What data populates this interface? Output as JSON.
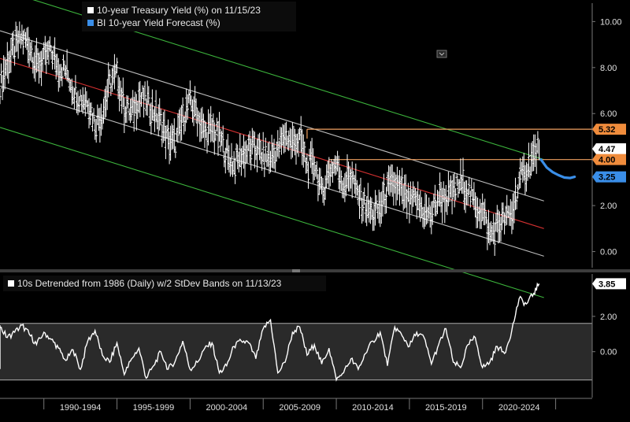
{
  "chart_data": [
    {
      "type": "line",
      "legend": [
        {
          "name": "10-year Treasury Yield (%) on 11/15/23",
          "color": "#ffffff"
        },
        {
          "name": "BI 10-year Yield Forecast (%)",
          "color": "#3a8ee8"
        }
      ],
      "legend_placement": "top-left",
      "yaxis_side": "right",
      "ylim": [
        -0.7,
        10.8
      ],
      "yticks": [
        0,
        2,
        4,
        6,
        8,
        10
      ],
      "ytick_labels": [
        "0.00",
        "2.00",
        "4.00",
        "6.00",
        "8.00",
        "10.00"
      ],
      "xlim": [
        1987.0,
        2027.5
      ],
      "grid": false,
      "series": [
        {
          "name": "10-year Treasury Yield (%) on 11/15/23",
          "color": "#ffffff",
          "style": "monthly-bar",
          "x": [
            1987.0,
            1987.5,
            1988.0,
            1988.5,
            1989.0,
            1989.5,
            1990.0,
            1990.5,
            1991.0,
            1991.5,
            1992.0,
            1992.5,
            1993.0,
            1993.5,
            1994.0,
            1994.5,
            1995.0,
            1995.5,
            1996.0,
            1996.5,
            1997.0,
            1997.5,
            1998.0,
            1998.5,
            1999.0,
            1999.5,
            2000.0,
            2000.5,
            2001.0,
            2001.5,
            2002.0,
            2002.5,
            2003.0,
            2003.5,
            2004.0,
            2004.5,
            2005.0,
            2005.5,
            2006.0,
            2006.5,
            2007.0,
            2007.5,
            2008.0,
            2008.5,
            2009.0,
            2009.5,
            2010.0,
            2010.5,
            2011.0,
            2011.5,
            2012.0,
            2012.5,
            2013.0,
            2013.5,
            2014.0,
            2014.5,
            2015.0,
            2015.5,
            2016.0,
            2016.5,
            2017.0,
            2017.5,
            2018.0,
            2018.5,
            2019.0,
            2019.5,
            2020.0,
            2020.5,
            2021.0,
            2021.5,
            2022.0,
            2022.5,
            2023.0,
            2023.5,
            2023.87
          ],
          "y": [
            7.2,
            8.2,
            8.8,
            9.3,
            9.0,
            8.1,
            8.3,
            8.7,
            8.0,
            7.9,
            7.1,
            6.7,
            6.6,
            5.6,
            6.0,
            7.3,
            7.7,
            6.3,
            6.0,
            6.7,
            6.5,
            6.1,
            5.6,
            4.8,
            4.7,
            5.8,
            6.5,
            6.0,
            5.1,
            5.3,
            5.0,
            4.2,
            3.8,
            4.2,
            4.4,
            4.5,
            4.1,
            4.1,
            4.4,
            5.1,
            4.7,
            4.9,
            3.7,
            3.9,
            2.5,
            3.5,
            3.8,
            2.9,
            3.4,
            2.4,
            2.0,
            1.6,
            1.9,
            2.7,
            2.9,
            2.5,
            2.1,
            2.2,
            1.7,
            1.6,
            2.4,
            2.3,
            2.5,
            3.0,
            2.7,
            2.0,
            1.8,
            0.7,
            1.1,
            1.4,
            1.6,
            3.0,
            3.6,
            4.1,
            4.47
          ]
        },
        {
          "name": "BI 10-year Yield Forecast (%)",
          "color": "#3a8ee8",
          "x": [
            2024.0,
            2024.4,
            2024.8,
            2025.2,
            2025.6,
            2026.0,
            2026.3
          ],
          "y": [
            4.0,
            3.65,
            3.45,
            3.32,
            3.22,
            3.2,
            3.25
          ]
        }
      ],
      "trend_channel": {
        "center": {
          "color": "#d23030",
          "x": [
            1987.0,
            2024.2
          ],
          "y": [
            8.4,
            1.0
          ]
        },
        "inner_bands": {
          "color": "#bdbdbd",
          "offset": 1.2
        },
        "outer_bands": {
          "color": "#3cb43c",
          "offset": 3.0
        }
      },
      "reference_lines": [
        {
          "label": "5.32",
          "value": 5.32,
          "x_start": 2008.0,
          "color": "#f0a060"
        },
        {
          "label": "4.00",
          "value": 4.0,
          "x_start": 2009.5,
          "color": "#f0a060"
        }
      ],
      "value_flags": [
        {
          "label": "5.32",
          "value": 5.32,
          "bg": "#f08c3c",
          "fg": "#000000"
        },
        {
          "label": "4.47",
          "value": 4.47,
          "bg": "#ffffff",
          "fg": "#000000"
        },
        {
          "label": "4.00",
          "value": 4.0,
          "bg": "#f08c3c",
          "fg": "#000000"
        },
        {
          "label": "3.25",
          "value": 3.25,
          "bg": "#3a8ee8",
          "fg": "#000000"
        }
      ]
    },
    {
      "type": "line",
      "legend": [
        {
          "name": "10s Detrended from 1986 (Daily) w/2 StDev Bands on 11/13/23",
          "color": "#ffffff"
        }
      ],
      "legend_placement": "top-left",
      "yaxis_side": "right",
      "ylim": [
        -2.6,
        4.4
      ],
      "yticks": [
        0,
        2
      ],
      "ytick_labels": [
        "0.00",
        "2.00"
      ],
      "bands": {
        "upper": 1.6,
        "lower": -1.6,
        "fill": "#2a2a2a",
        "edge": "#aaaaaa"
      },
      "series": [
        {
          "name": "10s Detrended from 1986 (Daily) w/2 StDev Bands on 11/13/23",
          "color": "#ffffff",
          "x": [
            1985.0,
            1985.5,
            1986.0,
            1986.5,
            1987.0,
            1987.5,
            1988.0,
            1988.5,
            1989.0,
            1989.5,
            1990.0,
            1990.5,
            1991.0,
            1991.5,
            1992.0,
            1992.5,
            1993.0,
            1993.5,
            1994.0,
            1994.5,
            1995.0,
            1995.5,
            1996.0,
            1996.5,
            1997.0,
            1997.5,
            1998.0,
            1998.5,
            1999.0,
            1999.5,
            2000.0,
            2000.5,
            2001.0,
            2001.5,
            2002.0,
            2002.5,
            2003.0,
            2003.5,
            2004.0,
            2004.5,
            2005.0,
            2005.5,
            2006.0,
            2006.5,
            2007.0,
            2007.5,
            2008.0,
            2008.5,
            2009.0,
            2009.5,
            2010.0,
            2010.5,
            2011.0,
            2011.5,
            2012.0,
            2012.5,
            2013.0,
            2013.5,
            2014.0,
            2014.5,
            2015.0,
            2015.5,
            2016.0,
            2016.5,
            2017.0,
            2017.5,
            2018.0,
            2018.5,
            2019.0,
            2019.5,
            2020.0,
            2020.5,
            2021.0,
            2021.5,
            2022.0,
            2022.5,
            2023.0,
            2023.5,
            2023.87
          ],
          "y": [
            -0.9,
            -0.7,
            0.3,
            1.2,
            1.4,
            0.8,
            1.1,
            1.5,
            1.0,
            0.4,
            1.1,
            0.7,
            0.2,
            -0.5,
            0.1,
            -1.0,
            0.6,
            1.2,
            -0.2,
            -0.6,
            0.5,
            -1.3,
            -0.4,
            0.2,
            -1.5,
            -0.8,
            0.0,
            -1.0,
            -0.5,
            0.6,
            -1.0,
            -0.6,
            0.2,
            0.5,
            -1.2,
            -0.8,
            0.3,
            0.6,
            0.5,
            -0.4,
            1.3,
            1.8,
            -1.2,
            -0.6,
            1.1,
            1.4,
            -0.2,
            0.4,
            -0.7,
            0.2,
            -1.6,
            -1.2,
            -0.4,
            -1.0,
            -0.1,
            0.6,
            1.1,
            -0.8,
            1.4,
            0.9,
            0.3,
            1.1,
            0.8,
            -0.7,
            0.4,
            1.3,
            -0.6,
            -0.9,
            0.4,
            0.8,
            -0.9,
            -0.6,
            0.3,
            -0.1,
            1.2,
            3.0,
            2.7,
            3.3,
            3.85
          ]
        }
      ],
      "value_flags": [
        {
          "label": "3.85",
          "value": 3.85,
          "bg": "#ffffff",
          "fg": "#000000"
        }
      ]
    }
  ],
  "x_axis": {
    "labels": [
      "1990-1994",
      "1995-1999",
      "2000-2004",
      "2005-2009",
      "2010-2014",
      "2015-2019",
      "2020-2024"
    ],
    "ranges": [
      [
        1990,
        1995
      ],
      [
        1995,
        2000
      ],
      [
        2000,
        2005
      ],
      [
        2005,
        2010
      ],
      [
        2010,
        2015
      ],
      [
        2015,
        2020
      ],
      [
        2020,
        2025
      ]
    ]
  },
  "colors": {
    "background": "#000000",
    "panel_divider": "#3c3c3c",
    "axis": "#777777",
    "tick_text": "#e0e0e0"
  },
  "icons": [
    "expand-icon"
  ]
}
